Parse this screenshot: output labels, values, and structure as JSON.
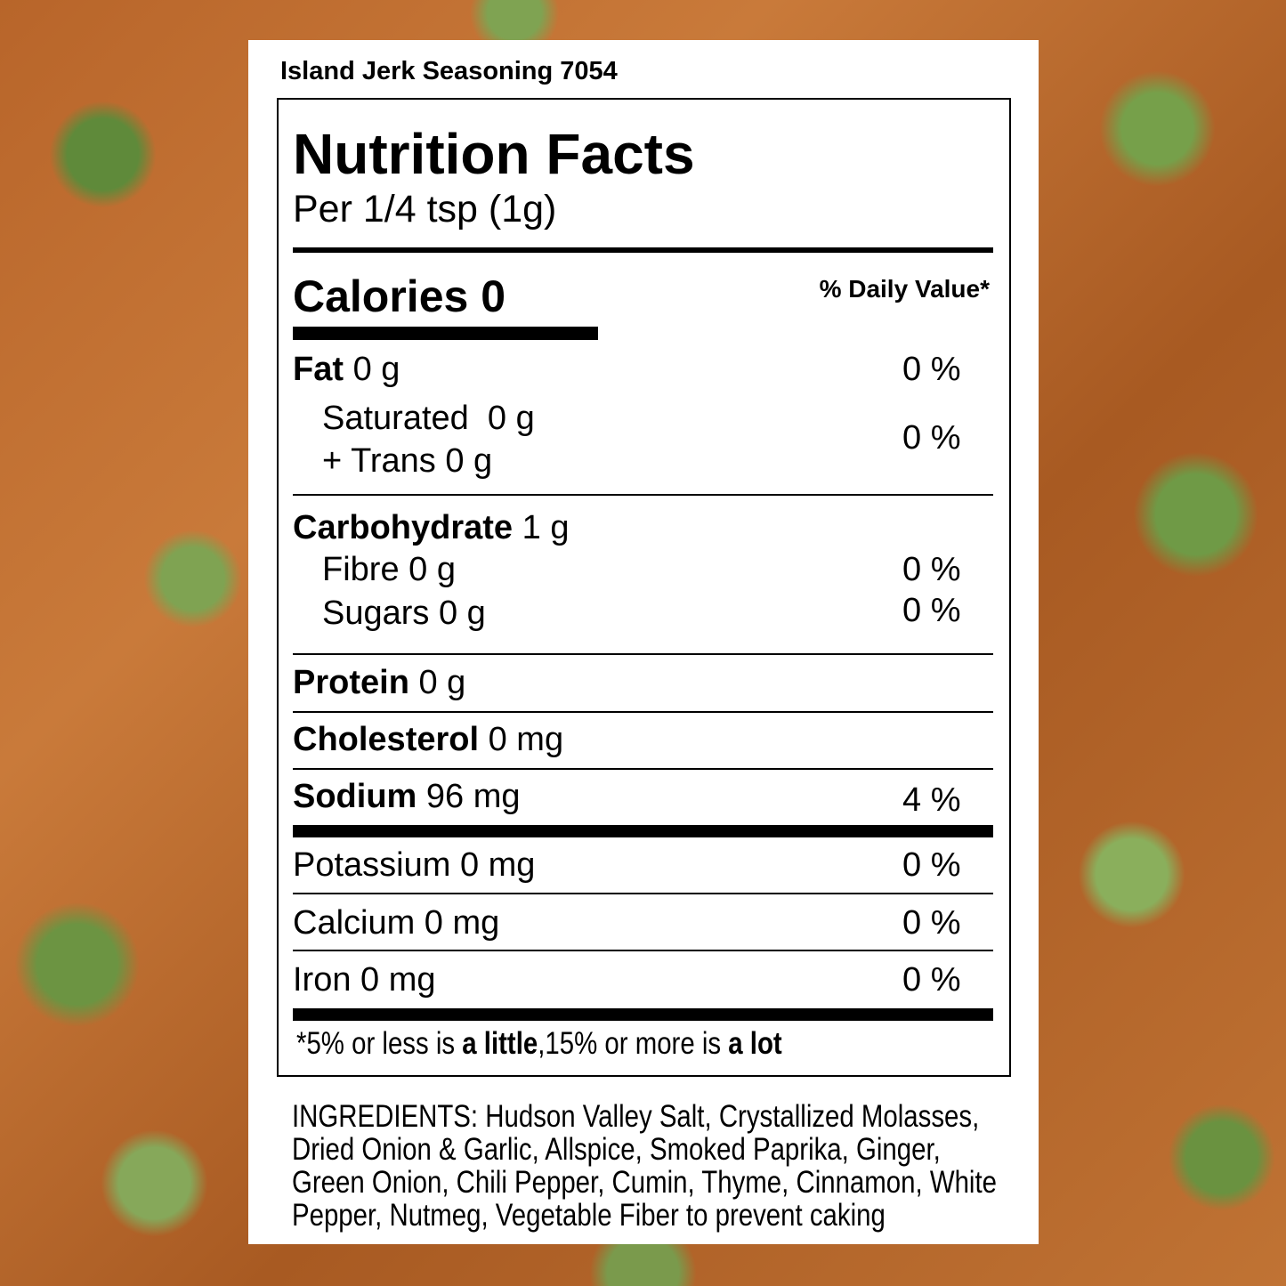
{
  "product_title": "Island Jerk Seasoning 7054",
  "label": {
    "heading": "Nutrition Facts",
    "serving": "Per 1/4 tsp (1g)",
    "calories_label": "Calories 0",
    "daily_value_header": "% Daily Value*",
    "rows": {
      "fat": {
        "name": "Fat",
        "amount": "0 g",
        "dv": "0 %"
      },
      "saturated": {
        "name": "Saturated  0 g"
      },
      "trans": {
        "name": "+ Trans 0 g"
      },
      "sat_trans_dv": "0 %",
      "carbohydrate": {
        "name": "Carbohydrate",
        "amount": "1 g"
      },
      "fibre": {
        "name": "Fibre 0 g",
        "dv": "0 %"
      },
      "sugars": {
        "name": "Sugars 0 g",
        "dv": "0 %"
      },
      "protein": {
        "name": "Protein",
        "amount": "0 g"
      },
      "cholesterol": {
        "name": "Cholesterol",
        "amount": "0 mg"
      },
      "sodium": {
        "name": "Sodium",
        "amount": "96 mg",
        "dv": "4 %"
      },
      "potassium": {
        "name": "Potassium 0 mg",
        "dv": "0 %"
      },
      "calcium": {
        "name": "Calcium 0 mg",
        "dv": "0 %"
      },
      "iron": {
        "name": "Iron 0 mg",
        "dv": "0 %"
      }
    },
    "footnote": {
      "p1": "*5% or less is ",
      "b1": "a little",
      "p2": ",15% or more is ",
      "b2": "a lot"
    }
  },
  "ingredients": [
    "INGREDIENTS: Hudson Valley Salt, Crystallized Molasses,",
    "Dried Onion & Garlic, Allspice, Smoked Paprika, Ginger,",
    "Green Onion, Chili Pepper, Cumin, Thyme, Cinnamon, White",
    "Pepper, Nutmeg, Vegetable Fiber to prevent caking"
  ]
}
